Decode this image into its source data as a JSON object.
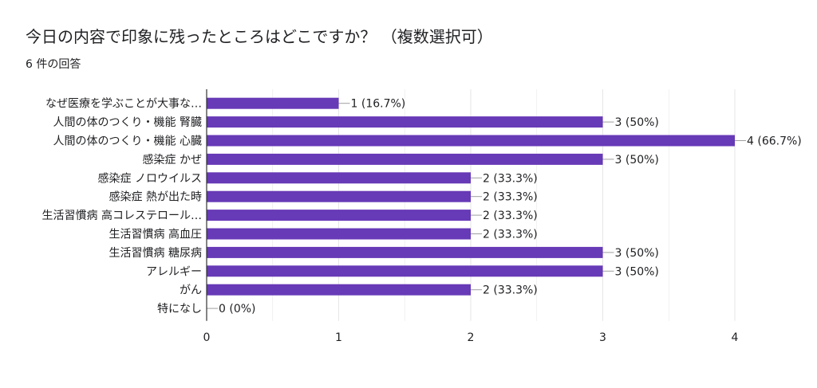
{
  "title": "今日の内容で印象に残ったところはどこですか？ （複数選択可）",
  "subtitle": "6 件の回答",
  "colors": {
    "bar": "#673ab7",
    "grid": "#e6e6e6",
    "axis": "#333333"
  },
  "chart_data": {
    "type": "bar",
    "orientation": "horizontal",
    "categories": [
      "なぜ医療を学ぶことが大事な…",
      "人間の体のつくり・機能 腎臓",
      "人間の体のつくり・機能 心臓",
      "感染症 かぜ",
      "感染症 ノロウイルス",
      "感染症 熱が出た時",
      "生活習慣病 高コレステロール…",
      "生活習慣病 高血圧",
      "生活習慣病 糖尿病",
      "アレルギー",
      "がん",
      "特になし"
    ],
    "values": [
      1,
      3,
      4,
      3,
      2,
      2,
      2,
      2,
      3,
      3,
      2,
      0
    ],
    "value_labels": [
      "1 (16.7%)",
      "3 (50%)",
      "4 (66.7%)",
      "3 (50%)",
      "2 (33.3%)",
      "2 (33.3%)",
      "2 (33.3%)",
      "2 (33.3%)",
      "3 (50%)",
      "3 (50%)",
      "2 (33.3%)",
      "0 (0%)"
    ],
    "xticks": [
      "0",
      "1",
      "2",
      "3",
      "4"
    ],
    "xlim": [
      0,
      4
    ],
    "grid": true
  }
}
